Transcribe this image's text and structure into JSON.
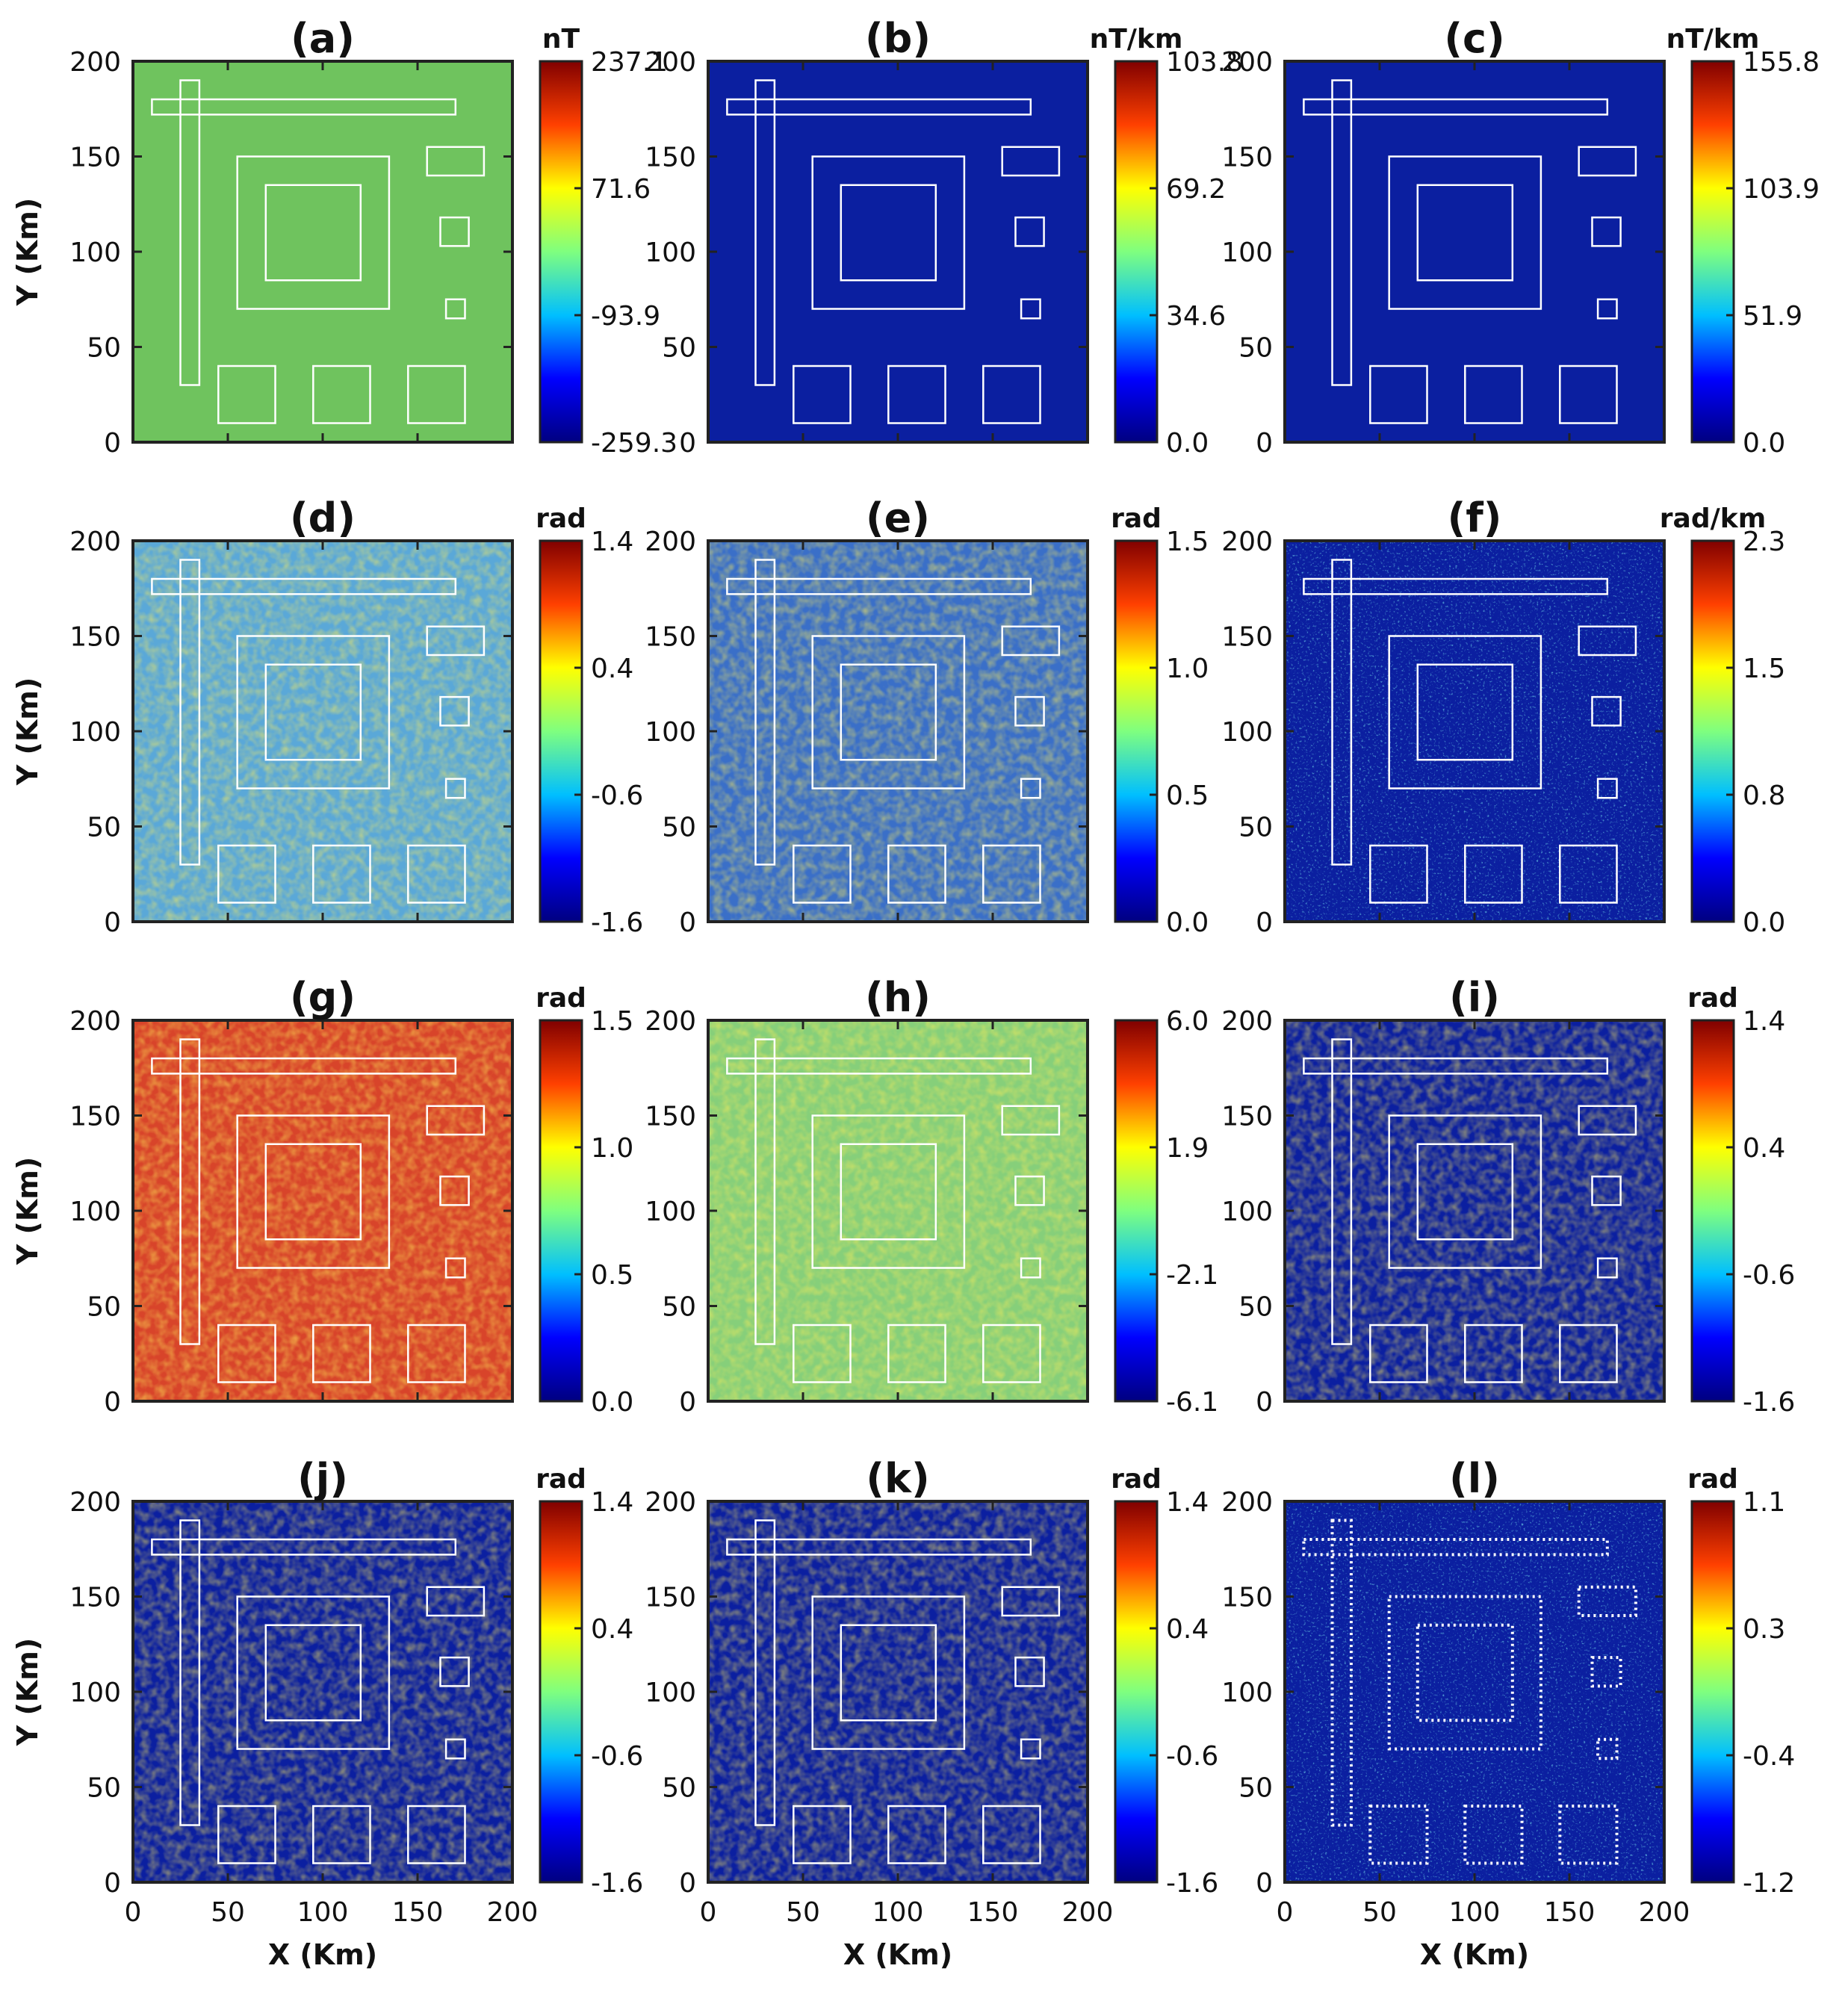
{
  "colormap": {
    "name": "jet",
    "stops": [
      "#000080",
      "#0000ff",
      "#00bfff",
      "#7fff7f",
      "#ffff00",
      "#ff4000",
      "#800000"
    ]
  },
  "outline_color": "#ffffff",
  "chart_data": [
    {
      "type": "heatmap",
      "title": "(a)",
      "unit": "nT",
      "colorbar_ticks": [
        "237.1",
        "71.6",
        "-93.9",
        "-259.3"
      ],
      "xlim": [
        0,
        200
      ],
      "ylim": [
        0,
        200
      ],
      "xticks": [
        "0",
        "50",
        "100",
        "150",
        "200"
      ],
      "yticks": [
        "0",
        "50",
        "100",
        "150",
        "200"
      ],
      "ylabel": "Y (Km)",
      "xlabel": "",
      "dotted_outlines": false,
      "texture": "smooth",
      "background_color": "#6fc35e"
    },
    {
      "type": "heatmap",
      "title": "(b)",
      "unit": "nT/km",
      "colorbar_ticks": [
        "103.8",
        "69.2",
        "34.6",
        "0.0"
      ],
      "xlim": [
        0,
        200
      ],
      "ylim": [
        0,
        200
      ],
      "xticks": [
        "0",
        "50",
        "100",
        "150",
        "200"
      ],
      "yticks": [
        "0",
        "50",
        "100",
        "150",
        "200"
      ],
      "ylabel": "",
      "xlabel": "",
      "dotted_outlines": false,
      "texture": "smooth",
      "background_color": "#0b1fa0"
    },
    {
      "type": "heatmap",
      "title": "(c)",
      "unit": "nT/km",
      "colorbar_ticks": [
        "155.8",
        "103.9",
        "51.9",
        "0.0"
      ],
      "xlim": [
        0,
        200
      ],
      "ylim": [
        0,
        200
      ],
      "xticks": [
        "0",
        "50",
        "100",
        "150",
        "200"
      ],
      "yticks": [
        "0",
        "50",
        "100",
        "150",
        "200"
      ],
      "ylabel": "",
      "xlabel": "",
      "dotted_outlines": false,
      "texture": "smooth",
      "background_color": "#0b1fa0"
    },
    {
      "type": "heatmap",
      "title": "(d)",
      "unit": "rad",
      "colorbar_ticks": [
        "1.4",
        "0.4",
        "-0.6",
        "-1.6"
      ],
      "xlim": [
        0,
        200
      ],
      "ylim": [
        0,
        200
      ],
      "xticks": [
        "0",
        "50",
        "100",
        "150",
        "200"
      ],
      "yticks": [
        "0",
        "50",
        "100",
        "150",
        "200"
      ],
      "ylabel": "Y (Km)",
      "xlabel": "",
      "dotted_outlines": false,
      "texture": "noisy",
      "background_color": "#5aa8d8"
    },
    {
      "type": "heatmap",
      "title": "(e)",
      "unit": "rad",
      "colorbar_ticks": [
        "1.5",
        "1.0",
        "0.5",
        "0.0"
      ],
      "xlim": [
        0,
        200
      ],
      "ylim": [
        0,
        200
      ],
      "xticks": [
        "0",
        "50",
        "100",
        "150",
        "200"
      ],
      "yticks": [
        "0",
        "50",
        "100",
        "150",
        "200"
      ],
      "ylabel": "",
      "xlabel": "",
      "dotted_outlines": false,
      "texture": "noisy",
      "background_color": "#3a6fc8"
    },
    {
      "type": "heatmap",
      "title": "(f)",
      "unit": "rad/km",
      "colorbar_ticks": [
        "2.3",
        "1.5",
        "0.8",
        "0.0"
      ],
      "xlim": [
        0,
        200
      ],
      "ylim": [
        0,
        200
      ],
      "xticks": [
        "0",
        "50",
        "100",
        "150",
        "200"
      ],
      "yticks": [
        "0",
        "50",
        "100",
        "150",
        "200"
      ],
      "ylabel": "",
      "xlabel": "",
      "dotted_outlines": false,
      "texture": "sparse",
      "background_color": "#0b1fa0"
    },
    {
      "type": "heatmap",
      "title": "(g)",
      "unit": "rad",
      "colorbar_ticks": [
        "1.5",
        "1.0",
        "0.5",
        "0.0"
      ],
      "xlim": [
        0,
        200
      ],
      "ylim": [
        0,
        200
      ],
      "xticks": [
        "0",
        "50",
        "100",
        "150",
        "200"
      ],
      "yticks": [
        "0",
        "50",
        "100",
        "150",
        "200"
      ],
      "ylabel": "Y (Km)",
      "xlabel": "",
      "dotted_outlines": false,
      "texture": "noisy",
      "background_color": "#d8442a"
    },
    {
      "type": "heatmap",
      "title": "(h)",
      "unit": "",
      "colorbar_ticks": [
        "6.0",
        "1.9",
        "-2.1",
        "-6.1"
      ],
      "xlim": [
        0,
        200
      ],
      "ylim": [
        0,
        200
      ],
      "xticks": [
        "0",
        "50",
        "100",
        "150",
        "200"
      ],
      "yticks": [
        "0",
        "50",
        "100",
        "150",
        "200"
      ],
      "ylabel": "",
      "xlabel": "",
      "dotted_outlines": false,
      "texture": "noisy",
      "background_color": "#86cf7a"
    },
    {
      "type": "heatmap",
      "title": "(i)",
      "unit": "rad",
      "colorbar_ticks": [
        "1.4",
        "0.4",
        "-0.6",
        "-1.6"
      ],
      "xlim": [
        0,
        200
      ],
      "ylim": [
        0,
        200
      ],
      "xticks": [
        "0",
        "50",
        "100",
        "150",
        "200"
      ],
      "yticks": [
        "0",
        "50",
        "100",
        "150",
        "200"
      ],
      "ylabel": "",
      "xlabel": "",
      "dotted_outlines": false,
      "texture": "noisy",
      "background_color": "#0b1fa0"
    },
    {
      "type": "heatmap",
      "title": "(j)",
      "unit": "rad",
      "colorbar_ticks": [
        "1.4",
        "0.4",
        "-0.6",
        "-1.6"
      ],
      "xlim": [
        0,
        200
      ],
      "ylim": [
        0,
        200
      ],
      "xticks": [
        "0",
        "50",
        "100",
        "150",
        "200"
      ],
      "yticks": [
        "0",
        "50",
        "100",
        "150",
        "200"
      ],
      "ylabel": "Y (Km)",
      "xlabel": "X (Km)",
      "dotted_outlines": false,
      "texture": "noisy",
      "background_color": "#0b1fa0"
    },
    {
      "type": "heatmap",
      "title": "(k)",
      "unit": "rad",
      "colorbar_ticks": [
        "1.4",
        "0.4",
        "-0.6",
        "-1.6"
      ],
      "xlim": [
        0,
        200
      ],
      "ylim": [
        0,
        200
      ],
      "xticks": [
        "0",
        "50",
        "100",
        "150",
        "200"
      ],
      "yticks": [
        "0",
        "50",
        "100",
        "150",
        "200"
      ],
      "ylabel": "",
      "xlabel": "X (Km)",
      "dotted_outlines": false,
      "texture": "noisy",
      "background_color": "#0b1fa0"
    },
    {
      "type": "heatmap",
      "title": "(l)",
      "unit": "rad",
      "colorbar_ticks": [
        "1.1",
        "0.3",
        "-0.4",
        "-1.2"
      ],
      "xlim": [
        0,
        200
      ],
      "ylim": [
        0,
        200
      ],
      "xticks": [
        "0",
        "50",
        "100",
        "150",
        "200"
      ],
      "yticks": [
        "0",
        "50",
        "100",
        "150",
        "200"
      ],
      "ylabel": "",
      "xlabel": "X (Km)",
      "dotted_outlines": true,
      "texture": "sparse",
      "background_color": "#0b1fa0"
    }
  ],
  "model_outlines_km": [
    {
      "name": "horizontal-bar",
      "x": [
        10,
        170
      ],
      "y": [
        172,
        180
      ]
    },
    {
      "name": "vertical-bar",
      "x": [
        25,
        35
      ],
      "y": [
        30,
        190
      ]
    },
    {
      "name": "outer-square",
      "x": [
        55,
        135
      ],
      "y": [
        70,
        150
      ]
    },
    {
      "name": "inner-square",
      "x": [
        70,
        120
      ],
      "y": [
        85,
        135
      ]
    },
    {
      "name": "right-rect-top",
      "x": [
        155,
        185
      ],
      "y": [
        140,
        155
      ]
    },
    {
      "name": "right-rect-mid",
      "x": [
        162,
        177
      ],
      "y": [
        103,
        118
      ]
    },
    {
      "name": "right-rect-low",
      "x": [
        165,
        175
      ],
      "y": [
        65,
        75
      ]
    },
    {
      "name": "bottom-square-left",
      "x": [
        45,
        75
      ],
      "y": [
        10,
        40
      ]
    },
    {
      "name": "bottom-square-mid",
      "x": [
        95,
        125
      ],
      "y": [
        10,
        40
      ]
    },
    {
      "name": "bottom-square-right",
      "x": [
        145,
        175
      ],
      "y": [
        10,
        40
      ]
    }
  ]
}
